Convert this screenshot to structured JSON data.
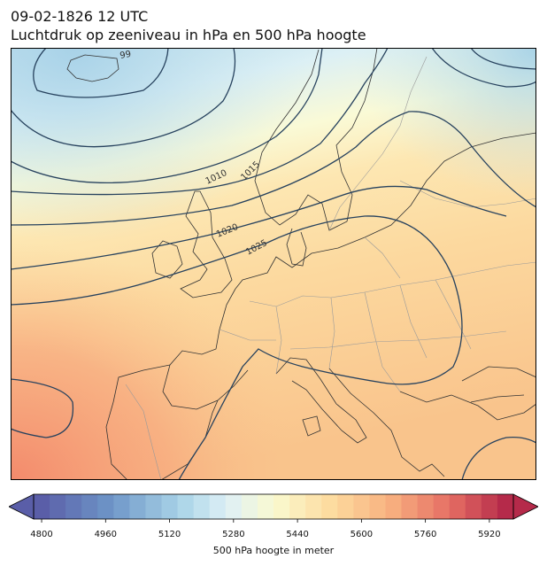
{
  "title": {
    "line1": "09-02-1826 12 UTC",
    "line2": "Luchtdruk op zeeniveau in hPa en 500 hPa hoogte"
  },
  "map": {
    "isobar_labels": [
      "99",
      "1010",
      "1015",
      "1020",
      "1025"
    ],
    "colors": {
      "isobar": "#27425e",
      "coast": "#333333",
      "border": "#9a9a9a"
    }
  },
  "colorbar": {
    "label": "500 hPa hoogte in meter",
    "min": 4800,
    "max": 5920,
    "step": 40,
    "tick_labels": [
      "4800",
      "4960",
      "5120",
      "5280",
      "5440",
      "5600",
      "5760",
      "5920"
    ],
    "extend": "both"
  }
}
